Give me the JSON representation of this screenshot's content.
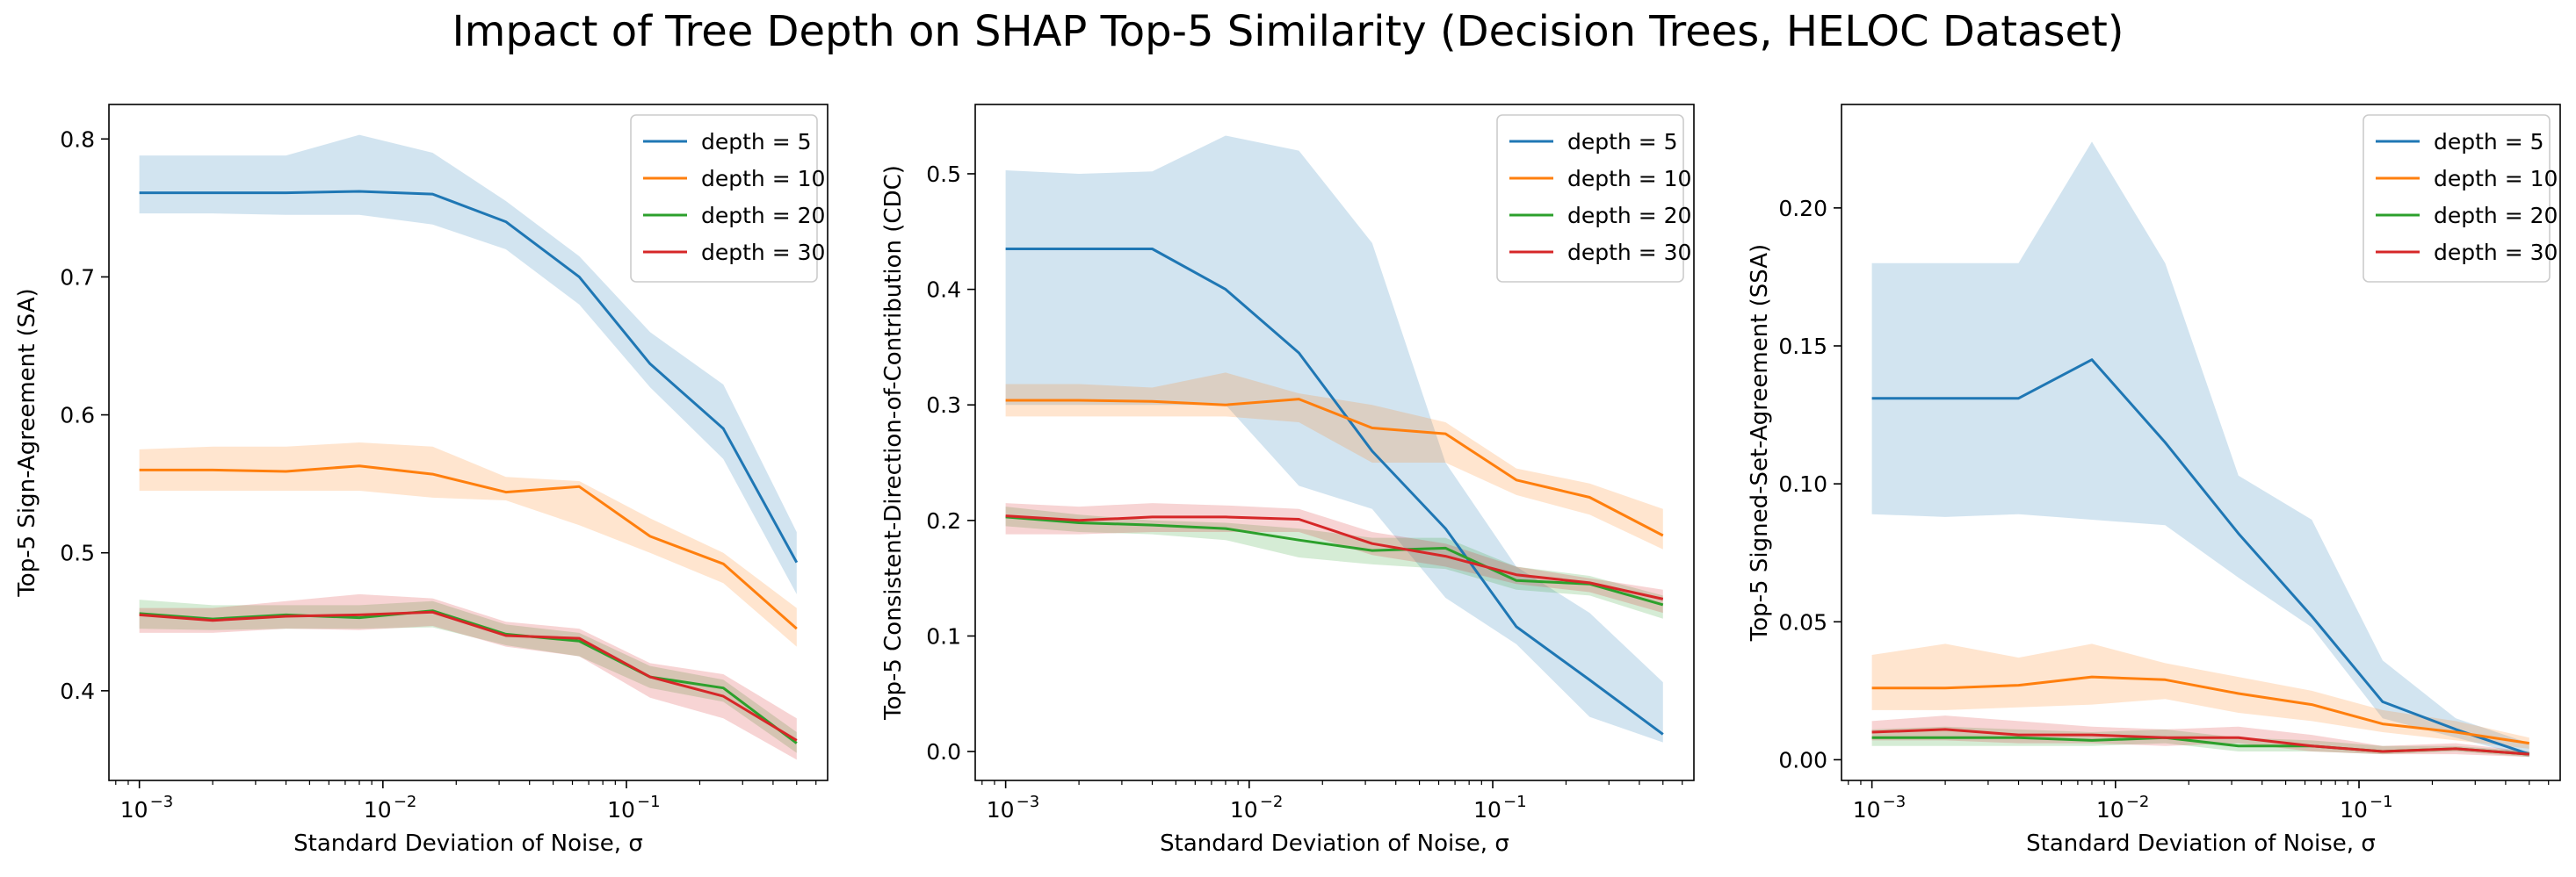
{
  "figure_title": "Impact of Tree Depth on SHAP Top-5 Similarity (Decision Trees, HELOC Dataset)",
  "colors": {
    "depth5": "#1f77b4",
    "depth10": "#ff7f0e",
    "depth20": "#2ca02c",
    "depth30": "#d62728"
  },
  "chart_data": [
    {
      "type": "line",
      "title": "",
      "xlabel": "Standard Deviation of Noise, σ",
      "ylabel": "Top-5 Sign-Agreement (SA)",
      "xscale": "log",
      "xlim": [
        0.00075,
        0.67
      ],
      "ylim": [
        0.335,
        0.825
      ],
      "yticks": [
        0.4,
        0.5,
        0.6,
        0.7,
        0.8
      ],
      "ytick_labels": [
        "0.4",
        "0.5",
        "0.6",
        "0.7",
        "0.8"
      ],
      "xticks": [
        0.001,
        0.01,
        0.1
      ],
      "xtick_labels": [
        "10",
        "10",
        "10"
      ],
      "xtick_exponents": [
        "−3",
        "−2",
        "−1"
      ],
      "legend_loc": "upper right",
      "x": [
        0.001,
        0.002,
        0.004,
        0.008,
        0.016,
        0.032,
        0.064,
        0.125,
        0.25,
        0.5
      ],
      "series": [
        {
          "name": "depth = 5",
          "color": "#1f77b4",
          "values": [
            0.761,
            0.761,
            0.761,
            0.762,
            0.76,
            0.74,
            0.7,
            0.637,
            0.59,
            0.493
          ],
          "lower": [
            0.746,
            0.746,
            0.745,
            0.745,
            0.738,
            0.72,
            0.68,
            0.62,
            0.568,
            0.47
          ],
          "upper": [
            0.788,
            0.788,
            0.788,
            0.803,
            0.79,
            0.755,
            0.715,
            0.66,
            0.622,
            0.515
          ]
        },
        {
          "name": "depth = 10",
          "color": "#ff7f0e",
          "values": [
            0.56,
            0.56,
            0.559,
            0.563,
            0.557,
            0.544,
            0.548,
            0.512,
            0.492,
            0.445
          ],
          "lower": [
            0.545,
            0.545,
            0.545,
            0.545,
            0.54,
            0.538,
            0.52,
            0.5,
            0.478,
            0.432
          ],
          "upper": [
            0.575,
            0.577,
            0.577,
            0.58,
            0.577,
            0.555,
            0.552,
            0.525,
            0.5,
            0.46
          ]
        },
        {
          "name": "depth = 20",
          "color": "#2ca02c",
          "values": [
            0.456,
            0.452,
            0.455,
            0.453,
            0.458,
            0.441,
            0.436,
            0.41,
            0.402,
            0.362
          ],
          "lower": [
            0.445,
            0.444,
            0.445,
            0.445,
            0.446,
            0.433,
            0.425,
            0.402,
            0.392,
            0.355
          ],
          "upper": [
            0.466,
            0.462,
            0.462,
            0.462,
            0.465,
            0.448,
            0.442,
            0.418,
            0.408,
            0.37
          ]
        },
        {
          "name": "depth = 30",
          "color": "#d62728",
          "values": [
            0.455,
            0.451,
            0.454,
            0.455,
            0.457,
            0.44,
            0.438,
            0.41,
            0.396,
            0.364
          ],
          "lower": [
            0.442,
            0.442,
            0.445,
            0.444,
            0.447,
            0.432,
            0.425,
            0.395,
            0.38,
            0.35
          ],
          "upper": [
            0.46,
            0.46,
            0.465,
            0.47,
            0.467,
            0.45,
            0.445,
            0.42,
            0.412,
            0.38
          ]
        }
      ]
    },
    {
      "type": "line",
      "title": "",
      "xlabel": "Standard Deviation of Noise, σ",
      "ylabel": "Top-5 Consistent-Direction-of-Contribution (CDC)",
      "xscale": "log",
      "xlim": [
        0.00075,
        0.67
      ],
      "ylim": [
        -0.025,
        0.56
      ],
      "yticks": [
        0.0,
        0.1,
        0.2,
        0.3,
        0.4,
        0.5
      ],
      "ytick_labels": [
        "0.0",
        "0.1",
        "0.2",
        "0.3",
        "0.4",
        "0.5"
      ],
      "xticks": [
        0.001,
        0.01,
        0.1
      ],
      "xtick_labels": [
        "10",
        "10",
        "10"
      ],
      "xtick_exponents": [
        "−3",
        "−2",
        "−1"
      ],
      "legend_loc": "upper right",
      "x": [
        0.001,
        0.002,
        0.004,
        0.008,
        0.016,
        0.032,
        0.064,
        0.125,
        0.25,
        0.5
      ],
      "series": [
        {
          "name": "depth = 5",
          "color": "#1f77b4",
          "values": [
            0.435,
            0.435,
            0.435,
            0.4,
            0.345,
            0.26,
            0.193,
            0.108,
            0.062,
            0.015
          ],
          "lower": [
            0.3,
            0.3,
            0.3,
            0.3,
            0.23,
            0.21,
            0.133,
            0.093,
            0.03,
            0.008
          ],
          "upper": [
            0.503,
            0.5,
            0.502,
            0.533,
            0.52,
            0.44,
            0.25,
            0.16,
            0.12,
            0.06
          ]
        },
        {
          "name": "depth = 10",
          "color": "#ff7f0e",
          "values": [
            0.304,
            0.304,
            0.303,
            0.3,
            0.305,
            0.28,
            0.275,
            0.235,
            0.22,
            0.187
          ],
          "lower": [
            0.29,
            0.29,
            0.29,
            0.29,
            0.285,
            0.25,
            0.25,
            0.222,
            0.205,
            0.175
          ],
          "upper": [
            0.318,
            0.318,
            0.315,
            0.328,
            0.31,
            0.3,
            0.285,
            0.245,
            0.232,
            0.21
          ]
        },
        {
          "name": "depth = 20",
          "color": "#2ca02c",
          "values": [
            0.203,
            0.198,
            0.196,
            0.193,
            0.183,
            0.174,
            0.176,
            0.148,
            0.145,
            0.127
          ],
          "lower": [
            0.195,
            0.19,
            0.188,
            0.183,
            0.168,
            0.162,
            0.158,
            0.14,
            0.135,
            0.115
          ],
          "upper": [
            0.212,
            0.205,
            0.2,
            0.198,
            0.193,
            0.185,
            0.185,
            0.16,
            0.152,
            0.135
          ]
        },
        {
          "name": "depth = 30",
          "color": "#d62728",
          "values": [
            0.204,
            0.2,
            0.203,
            0.203,
            0.201,
            0.18,
            0.169,
            0.153,
            0.146,
            0.132
          ],
          "lower": [
            0.188,
            0.188,
            0.19,
            0.19,
            0.19,
            0.17,
            0.16,
            0.145,
            0.138,
            0.12
          ],
          "upper": [
            0.215,
            0.212,
            0.215,
            0.213,
            0.21,
            0.19,
            0.18,
            0.16,
            0.15,
            0.14
          ]
        }
      ]
    },
    {
      "type": "line",
      "title": "",
      "xlabel": "Standard Deviation of Noise, σ",
      "ylabel": "Top-5 Signed-Set-Agreement (SSA)",
      "xscale": "log",
      "xlim": [
        0.00075,
        0.67
      ],
      "ylim": [
        -0.0075,
        0.2375
      ],
      "yticks": [
        0.0,
        0.05,
        0.1,
        0.15,
        0.2
      ],
      "ytick_labels": [
        "0.00",
        "0.05",
        "0.10",
        "0.15",
        "0.20"
      ],
      "xticks": [
        0.001,
        0.01,
        0.1
      ],
      "xtick_labels": [
        "10",
        "10",
        "10"
      ],
      "xtick_exponents": [
        "−3",
        "−2",
        "−1"
      ],
      "legend_loc": "upper right",
      "x": [
        0.001,
        0.002,
        0.004,
        0.008,
        0.016,
        0.032,
        0.064,
        0.125,
        0.25,
        0.5
      ],
      "series": [
        {
          "name": "depth = 5",
          "color": "#1f77b4",
          "values": [
            0.131,
            0.131,
            0.131,
            0.145,
            0.115,
            0.082,
            0.052,
            0.021,
            0.011,
            0.002
          ],
          "lower": [
            0.089,
            0.088,
            0.089,
            0.087,
            0.085,
            0.066,
            0.048,
            0.015,
            0.008,
            0.001
          ],
          "upper": [
            0.18,
            0.18,
            0.18,
            0.224,
            0.18,
            0.103,
            0.087,
            0.036,
            0.015,
            0.006
          ]
        },
        {
          "name": "depth = 10",
          "color": "#ff7f0e",
          "values": [
            0.026,
            0.026,
            0.027,
            0.03,
            0.029,
            0.024,
            0.02,
            0.013,
            0.01,
            0.006
          ],
          "lower": [
            0.018,
            0.018,
            0.019,
            0.02,
            0.022,
            0.017,
            0.014,
            0.01,
            0.007,
            0.004
          ],
          "upper": [
            0.038,
            0.042,
            0.037,
            0.042,
            0.035,
            0.03,
            0.025,
            0.018,
            0.014,
            0.008
          ]
        },
        {
          "name": "depth = 20",
          "color": "#2ca02c",
          "values": [
            0.008,
            0.008,
            0.008,
            0.007,
            0.008,
            0.005,
            0.005,
            0.003,
            0.004,
            0.002
          ],
          "lower": [
            0.005,
            0.005,
            0.005,
            0.005,
            0.006,
            0.003,
            0.003,
            0.002,
            0.003,
            0.001
          ],
          "upper": [
            0.011,
            0.012,
            0.011,
            0.01,
            0.011,
            0.008,
            0.007,
            0.005,
            0.005,
            0.003
          ]
        },
        {
          "name": "depth = 30",
          "color": "#d62728",
          "values": [
            0.01,
            0.011,
            0.009,
            0.009,
            0.008,
            0.008,
            0.005,
            0.003,
            0.004,
            0.002
          ],
          "lower": [
            0.007,
            0.007,
            0.006,
            0.006,
            0.005,
            0.006,
            0.003,
            0.002,
            0.002,
            0.001
          ],
          "upper": [
            0.014,
            0.016,
            0.014,
            0.012,
            0.011,
            0.012,
            0.009,
            0.005,
            0.006,
            0.003
          ]
        }
      ]
    }
  ]
}
